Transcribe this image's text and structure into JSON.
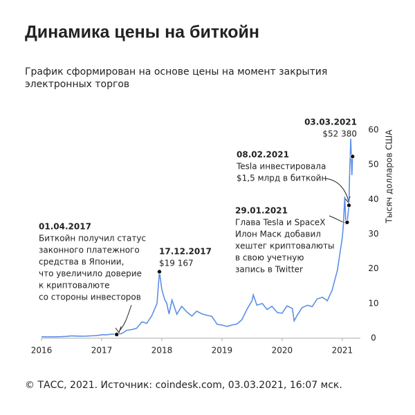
{
  "chart_data": {
    "type": "line",
    "title": "Динамика цены на биткойн",
    "subtitle": [
      "График сформирован на основе цены на момент закрытия",
      "электронных торгов"
    ],
    "y_label": "Тысяч долларов США",
    "footer": "© ТАСС, 2021. Источник: coindesk.com, 03.03.2021, 16:07 мск.",
    "color": "#5b8fe6",
    "x": [
      2016.0,
      2016.08,
      2016.17,
      2016.25,
      2016.33,
      2016.42,
      2016.5,
      2016.58,
      2016.67,
      2016.75,
      2016.83,
      2016.92,
      2017.0,
      2017.08,
      2017.17,
      2017.25,
      2017.33,
      2017.42,
      2017.5,
      2017.58,
      2017.67,
      2017.75,
      2017.83,
      2017.92,
      2017.96,
      2018.0,
      2018.05,
      2018.08,
      2018.12,
      2018.17,
      2018.25,
      2018.33,
      2018.42,
      2018.5,
      2018.58,
      2018.67,
      2018.75,
      2018.83,
      2018.92,
      2019.0,
      2019.08,
      2019.17,
      2019.25,
      2019.33,
      2019.42,
      2019.5,
      2019.52,
      2019.58,
      2019.67,
      2019.75,
      2019.83,
      2019.92,
      2020.0,
      2020.08,
      2020.17,
      2020.2,
      2020.25,
      2020.33,
      2020.42,
      2020.5,
      2020.58,
      2020.67,
      2020.75,
      2020.83,
      2020.92,
      2021.0,
      2021.02,
      2021.04,
      2021.06,
      2021.08,
      2021.11,
      2021.12,
      2021.14,
      2021.16,
      2021.17
    ],
    "values": [
      0.43,
      0.37,
      0.42,
      0.42,
      0.45,
      0.53,
      0.67,
      0.62,
      0.57,
      0.61,
      0.7,
      0.75,
      0.97,
      0.97,
      1.19,
      1.08,
      1.35,
      2.3,
      2.5,
      2.85,
      4.7,
      4.3,
      6.4,
      10.0,
      19.2,
      14.0,
      11.0,
      10.2,
      7.0,
      11.0,
      6.9,
      9.2,
      7.5,
      6.4,
      7.8,
      7.0,
      6.6,
      6.3,
      4.0,
      3.8,
      3.4,
      3.8,
      4.1,
      5.3,
      8.5,
      10.8,
      12.5,
      9.5,
      10.0,
      8.3,
      9.2,
      7.4,
      7.2,
      9.3,
      8.6,
      5.0,
      6.6,
      8.8,
      9.5,
      9.1,
      11.3,
      11.8,
      10.8,
      13.8,
      19.7,
      29.0,
      33.0,
      40.8,
      33.0,
      33.4,
      38.3,
      46.0,
      57.5,
      47.0,
      52.38
    ],
    "xlim": [
      2016,
      2021.3
    ],
    "xticks": [
      2016,
      2017,
      2018,
      2019,
      2020,
      2021
    ],
    "ylim": [
      0,
      60
    ],
    "yticks": [
      0,
      10,
      20,
      30,
      40,
      50,
      60
    ],
    "annotations": [
      {
        "date": "01.04.2017",
        "text": [
          "Биткойн получил статус",
          "законного платежного",
          "средства в Японии,",
          "что увеличило доверие",
          "к криптовалюте",
          "со стороны инвесторов"
        ],
        "x": 2017.25,
        "y": 1.08
      },
      {
        "date": "17.12.2017",
        "value_label": "$19 167",
        "x": 2017.96,
        "y": 19.167
      },
      {
        "date": "29.01.2021",
        "text": [
          "Глава Tesla и SpaceX",
          "Илон Маск добавил",
          "хештег криптовалюты",
          "в свою учетную",
          "запись в Twitter"
        ],
        "x": 2021.08,
        "y": 33.4
      },
      {
        "date": "08.02.2021",
        "text": [
          "Tesla инвестировала",
          "$1,5 млрд в биткойн"
        ],
        "x": 2021.11,
        "y": 38.3
      },
      {
        "date": "03.03.2021",
        "value_label": "$52 380",
        "x": 2021.17,
        "y": 52.38
      }
    ]
  }
}
